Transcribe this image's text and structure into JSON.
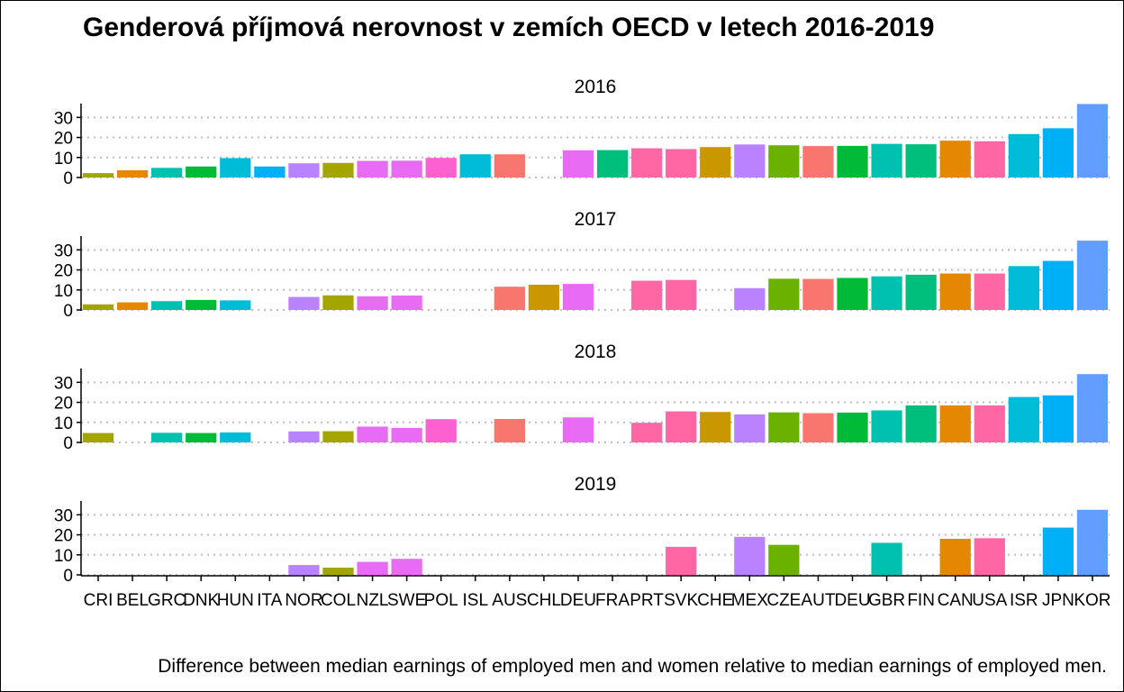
{
  "chart_data": {
    "type": "bar",
    "title": "Genderová příjmová nerovnost v zemích OECD v letech 2016-2019",
    "caption": "Difference between median earnings of employed men and women relative to median earnings of employed men.",
    "xlabel": "",
    "ylabel": "",
    "ylim": [
      0,
      36
    ],
    "yticks": [
      0,
      10,
      20,
      30
    ],
    "grid": "horizontal dotted",
    "legend": "none",
    "categories": [
      "CRI",
      "BEL",
      "GRC",
      "DNK",
      "HUN",
      "ITA",
      "NOR",
      "COL",
      "NZL",
      "SWE",
      "POL",
      "ISL",
      "AUS",
      "CHL",
      "DEU",
      "FRA",
      "PRT",
      "SVK",
      "CHE",
      "MEX",
      "CZE",
      "AUT",
      "DEU",
      "GBR",
      "FIN",
      "CAN",
      "USA",
      "ISR",
      "JPN",
      "KOR"
    ],
    "colors": [
      "#F8766D",
      "#E58700",
      "#C99800",
      "#A3A500",
      "#6BB100",
      "#00BA38",
      "#00BF7D",
      "#00C0AF",
      "#00BCD8",
      "#00B0F6",
      "#619CFF",
      "#B983FF",
      "#E76BF3",
      "#FD61D1",
      "#FF67A4"
    ],
    "color_map": [
      3,
      1,
      7,
      5,
      8,
      9,
      11,
      3,
      12,
      12,
      13,
      8,
      0,
      2,
      12,
      6,
      14,
      14,
      2,
      11,
      4,
      0,
      5,
      7,
      6,
      1,
      14,
      8,
      9,
      10
    ],
    "panels": [
      {
        "name": "2016",
        "values": [
          2.2,
          3.6,
          4.8,
          5.5,
          9.7,
          5.5,
          7.1,
          7.3,
          8.3,
          8.4,
          9.8,
          11.6,
          11.6,
          null,
          13.6,
          13.7,
          14.6,
          14.2,
          15.2,
          16.5,
          16.1,
          15.7,
          15.8,
          16.8,
          16.6,
          18.4,
          18.1,
          21.7,
          24.6,
          36.7
        ]
      },
      {
        "name": "2017",
        "values": [
          2.8,
          3.8,
          4.4,
          5.0,
          4.8,
          null,
          6.5,
          7.3,
          6.8,
          7.2,
          null,
          null,
          11.6,
          12.6,
          13.0,
          null,
          14.6,
          15.0,
          null,
          10.9,
          15.6,
          15.5,
          16.0,
          16.8,
          17.6,
          18.2,
          18.2,
          21.9,
          24.5,
          34.6
        ]
      },
      {
        "name": "2018",
        "values": [
          4.7,
          null,
          4.8,
          4.7,
          5.0,
          null,
          5.5,
          5.6,
          7.9,
          7.2,
          11.6,
          null,
          11.7,
          null,
          12.5,
          null,
          9.8,
          15.5,
          15.2,
          14.0,
          15.0,
          14.6,
          14.9,
          16.0,
          18.5,
          18.5,
          18.5,
          22.7,
          23.5,
          34.1
        ]
      },
      {
        "name": "2019",
        "values": [
          null,
          null,
          null,
          null,
          null,
          null,
          4.9,
          3.6,
          6.5,
          8.0,
          null,
          null,
          null,
          null,
          null,
          null,
          null,
          14.0,
          null,
          19.0,
          15.0,
          null,
          null,
          16.0,
          null,
          18.0,
          18.3,
          null,
          23.6,
          32.5
        ]
      }
    ]
  }
}
